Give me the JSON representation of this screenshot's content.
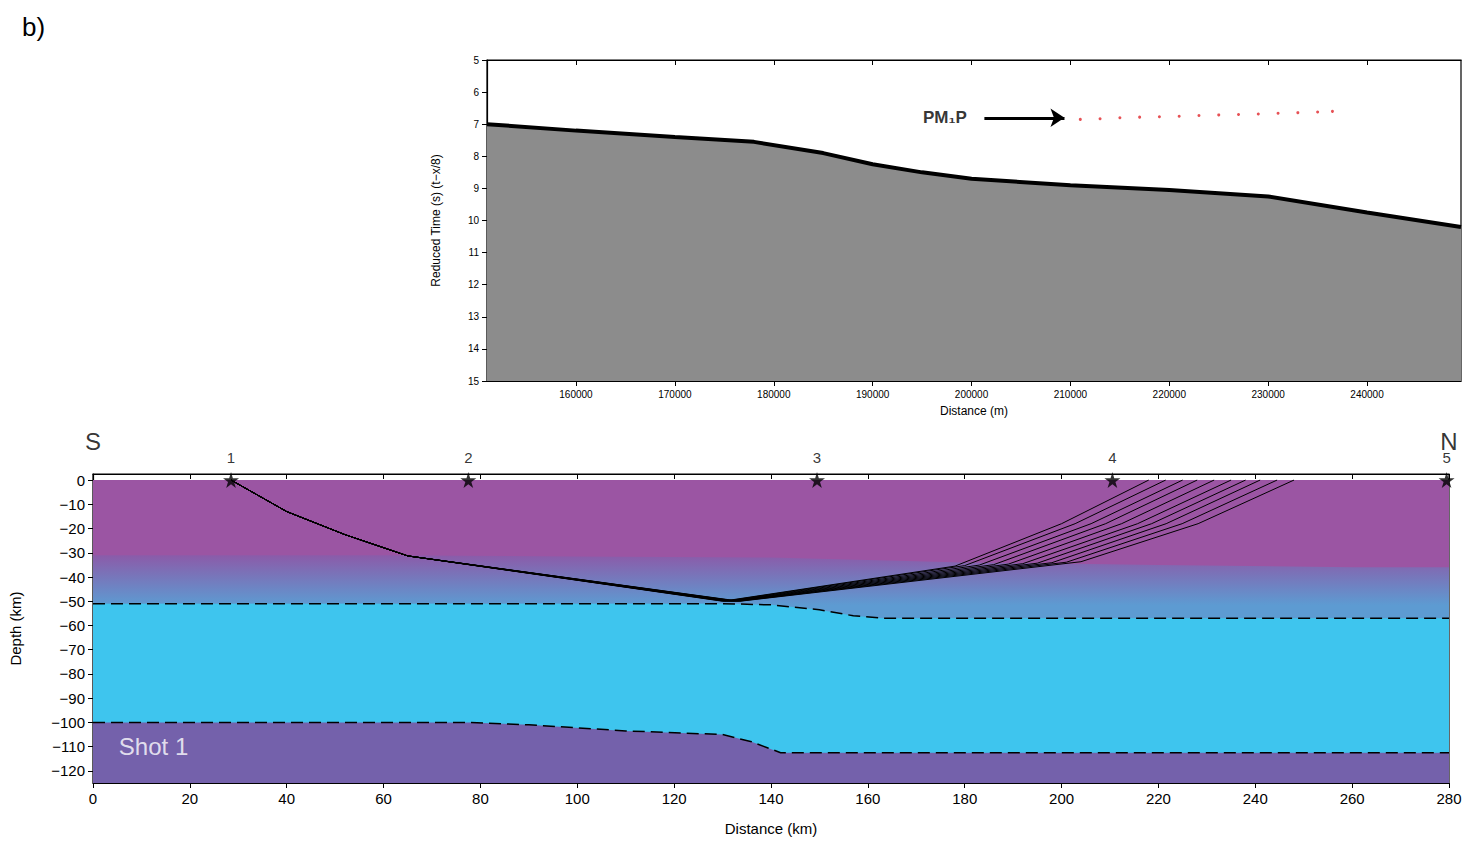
{
  "panel": "b)",
  "chart_data": [
    {
      "type": "line",
      "xlabel": "Distance (m)",
      "ylabel": "Reduced Time (s) (t−x/8)",
      "xlim": [
        151000,
        249500
      ],
      "xticks": [
        160000,
        170000,
        180000,
        190000,
        200000,
        210000,
        220000,
        230000,
        240000
      ],
      "ylim": [
        15,
        5
      ],
      "yticks": [
        5,
        6,
        7,
        8,
        9,
        10,
        11,
        12,
        13,
        14,
        15
      ],
      "grid": false,
      "series": [
        {
          "type": "area",
          "color": "#8c8c8c",
          "line_style": "solid",
          "x": [
            151000,
            160000,
            170000,
            178000,
            185000,
            190000,
            195000,
            200000,
            210000,
            220000,
            230000,
            240000,
            249500
          ],
          "values": [
            7.0,
            7.2,
            7.4,
            7.55,
            7.9,
            8.25,
            8.5,
            8.7,
            8.9,
            9.05,
            9.25,
            9.75,
            10.2
          ]
        },
        {
          "type": "scatter",
          "marker": "circle",
          "color": "#e0262a",
          "x": [
            211000,
            213000,
            215000,
            217000,
            219000,
            221000,
            223000,
            225000,
            227000,
            229000,
            231000,
            233000,
            235000,
            236500
          ],
          "values": [
            6.85,
            6.83,
            6.8,
            6.78,
            6.77,
            6.75,
            6.73,
            6.71,
            6.7,
            6.68,
            6.66,
            6.64,
            6.62,
            6.6
          ]
        }
      ],
      "annotations": [
        {
          "text": "PM₁P",
          "x": 197300,
          "y": 6.8,
          "arrow": [
            [
              201300,
              6.8
            ],
            [
              209400,
              6.8
            ]
          ]
        }
      ]
    },
    {
      "type": "area",
      "xlabel": "Distance (km)",
      "ylabel": "Depth (km)",
      "xlim": [
        0,
        280
      ],
      "xticks": [
        0,
        20,
        40,
        60,
        80,
        100,
        120,
        140,
        160,
        180,
        200,
        220,
        240,
        260,
        280
      ],
      "ylim": [
        -125,
        2.5
      ],
      "yticks": [
        0,
        {
          "value": -10,
          "label": "−10"
        },
        {
          "value": -20,
          "label": "−20"
        },
        {
          "value": -30,
          "label": "−30"
        },
        {
          "value": -40,
          "label": "−40"
        },
        {
          "value": -50,
          "label": "−50"
        },
        {
          "value": -60,
          "label": "−60"
        },
        {
          "value": -70,
          "label": "−70"
        },
        {
          "value": -80,
          "label": "−80"
        },
        {
          "value": -90,
          "label": "−90"
        },
        {
          "value": -100,
          "label": "−100"
        },
        {
          "value": -110,
          "label": "−110"
        },
        {
          "value": -120,
          "label": "−120"
        }
      ],
      "grid": false,
      "series": [
        {
          "type": "area",
          "color": "#9b55a3",
          "line_style": "none",
          "x": [
            0,
            280
          ],
          "values": [
            0,
            0
          ]
        },
        {
          "type": "area",
          "color": "#8b5ba9",
          "line_style": "none",
          "x": [
            0,
            60,
            100,
            140,
            180,
            220,
            260,
            280
          ],
          "values": [
            -31,
            -31,
            -31.5,
            -32,
            -34,
            -35,
            -36,
            -36
          ]
        },
        {
          "type": "area",
          "color": "#3ec5ee",
          "line_style": "dashed",
          "x": [
            0,
            130,
            140,
            150,
            157,
            163,
            280
          ],
          "values": [
            -51,
            -51,
            -51.5,
            -53.5,
            -56,
            -57,
            -57
          ]
        },
        {
          "type": "area",
          "color": "#7461ab",
          "line_style": "dashed",
          "x": [
            0,
            78,
            90,
            110,
            130,
            136,
            142,
            280
          ],
          "values": [
            -100,
            -100,
            -101,
            -103.5,
            -105,
            -108,
            -112.5,
            -112.5
          ]
        },
        {
          "type": "line",
          "color": "#000000",
          "x": [
            28.5,
            40,
            52,
            65,
            130,
            178,
            200,
            218
          ],
          "values": [
            0,
            -13,
            -22.5,
            -31.3,
            -50,
            -35.5,
            -18,
            0
          ]
        },
        {
          "type": "line",
          "color": "#000000",
          "x": [
            28.5,
            40,
            52,
            65,
            130.4,
            180,
            202.8,
            221.5
          ],
          "values": [
            0,
            -13,
            -22.5,
            -31.3,
            -50,
            -35.3,
            -18,
            0
          ]
        },
        {
          "type": "line",
          "color": "#000000",
          "x": [
            28.5,
            40,
            52,
            65,
            130.8,
            183,
            206.1,
            225
          ],
          "values": [
            0,
            -13,
            -22.5,
            -31.3,
            -50,
            -35.1,
            -18,
            0
          ]
        },
        {
          "type": "line",
          "color": "#000000",
          "x": [
            28.5,
            40,
            52,
            65,
            131.2,
            186,
            209.1,
            228
          ],
          "values": [
            0,
            -13,
            -22.5,
            -31.3,
            -50,
            -34.9,
            -18,
            0
          ]
        },
        {
          "type": "line",
          "color": "#000000",
          "x": [
            28.5,
            40,
            52,
            65,
            131.6,
            189,
            212.4,
            231.5
          ],
          "values": [
            0,
            -13,
            -22.5,
            -31.3,
            -50,
            -34.7,
            -18,
            0
          ]
        },
        {
          "type": "line",
          "color": "#000000",
          "x": [
            28.5,
            40,
            52,
            65,
            132,
            192,
            215.7,
            235
          ],
          "values": [
            0,
            -13,
            -22.5,
            -31.3,
            -50,
            -34.5,
            -18,
            0
          ]
        },
        {
          "type": "line",
          "color": "#000000",
          "x": [
            28.5,
            40,
            52,
            65,
            132.4,
            195,
            218.6,
            238
          ],
          "values": [
            0,
            -13,
            -22.5,
            -31.3,
            -50,
            -34.3,
            -18,
            0
          ]
        },
        {
          "type": "line",
          "color": "#000000",
          "x": [
            28.5,
            40,
            52,
            65,
            132.8,
            198,
            221.6,
            241
          ],
          "values": [
            0,
            -13,
            -22.5,
            -31.3,
            -50,
            -34.1,
            -18,
            0
          ]
        },
        {
          "type": "line",
          "color": "#000000",
          "x": [
            28.5,
            40,
            52,
            65,
            133.2,
            201,
            224.9,
            244.5
          ],
          "values": [
            0,
            -13,
            -22.5,
            -31.3,
            -50,
            -33.9,
            -18,
            0
          ]
        },
        {
          "type": "line",
          "color": "#000000",
          "x": [
            28.5,
            40,
            52,
            65,
            133.6,
            204,
            228.2,
            248
          ],
          "values": [
            0,
            -13,
            -22.5,
            -31.3,
            -50,
            -33.7,
            -18,
            0
          ]
        },
        {
          "type": "scatter",
          "marker": "star",
          "color": "#000000",
          "x": [
            28.5,
            77.5,
            149.5,
            210.5,
            279.5
          ],
          "values": [
            0,
            0,
            0,
            0,
            0
          ],
          "labels": [
            "1",
            "2",
            "3",
            "4",
            "5"
          ]
        }
      ],
      "annotations": [
        {
          "text": "S",
          "x": 0,
          "y": 16
        },
        {
          "text": "N",
          "x": 280,
          "y": 16
        },
        {
          "text": "Shot 1",
          "x": 12.5,
          "y": -110,
          "color": "#ffffff"
        }
      ]
    }
  ]
}
